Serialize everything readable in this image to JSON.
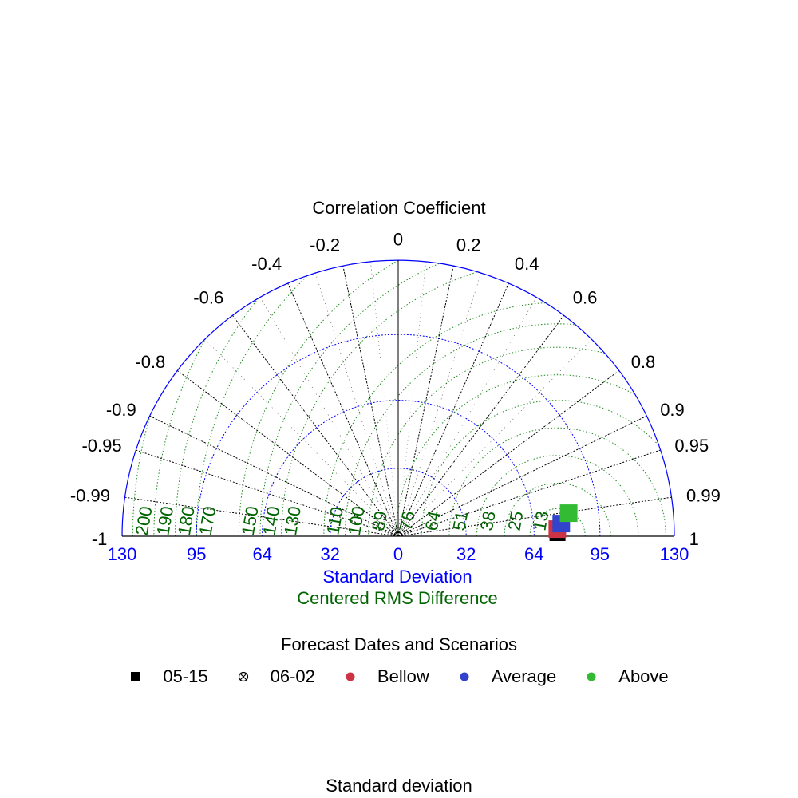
{
  "chart_data": {
    "type": "scatter",
    "subtype": "taylor-diagram",
    "title": "Correlation Coefficient",
    "xlabel": "Standard Deviation",
    "xlabel2": "Centered RMS Difference",
    "bottom_title": "Standard deviation",
    "reference_sd": 75,
    "sd_range": [
      -130,
      130
    ],
    "sd_tick_labels": [
      "130",
      "95",
      "64",
      "32",
      "0",
      "32",
      "64",
      "95",
      "130"
    ],
    "sd_arc_values": [
      32,
      64,
      95
    ],
    "correlation_ticks": [
      {
        "value": 0,
        "label": "0"
      },
      {
        "value": 0.2,
        "label": "0.2"
      },
      {
        "value": 0.4,
        "label": "0.4"
      },
      {
        "value": 0.6,
        "label": "0.6"
      },
      {
        "value": 0.8,
        "label": "0.8"
      },
      {
        "value": 0.9,
        "label": "0.9"
      },
      {
        "value": 0.95,
        "label": "0.95"
      },
      {
        "value": 0.99,
        "label": "0.99"
      },
      {
        "value": 1,
        "label": "1"
      },
      {
        "value": -0.2,
        "label": "-0.2"
      },
      {
        "value": -0.4,
        "label": "-0.4"
      },
      {
        "value": -0.6,
        "label": "-0.6"
      },
      {
        "value": -0.8,
        "label": "-0.8"
      },
      {
        "value": -0.9,
        "label": "-0.9"
      },
      {
        "value": -0.95,
        "label": "-0.95"
      },
      {
        "value": -0.99,
        "label": "-0.99"
      },
      {
        "value": -1,
        "label": "-1"
      }
    ],
    "rms_contours": [
      13,
      25,
      38,
      51,
      64,
      76,
      89,
      100,
      110,
      130,
      140,
      150,
      170,
      180,
      190,
      200
    ],
    "rms_labels": [
      "13",
      "25",
      "38",
      "51",
      "64",
      "76",
      "89",
      "100",
      "110",
      "130",
      "140",
      "150",
      "170",
      "180",
      "190",
      "200"
    ],
    "points": [
      {
        "date": "05-15",
        "scenario": "Bellow",
        "sd": 75,
        "corr": 0.999
      },
      {
        "date": "05-15",
        "scenario": "Average",
        "sd": 77,
        "corr": 0.997
      },
      {
        "date": "05-15",
        "scenario": "Above",
        "sd": 81,
        "corr": 0.991
      }
    ],
    "colors": {
      "axis_blue": "#0000ff",
      "rms_green": "#006400",
      "arc_green": "#228b22",
      "Bellow": "#cc3344",
      "Average": "#3344cc",
      "Above": "#33bb33",
      "obs": "#000000"
    },
    "legend": {
      "title": "Forecast Dates and Scenarios",
      "placement": "bottom",
      "items": [
        {
          "label": "05-15",
          "marker": "square",
          "color": "#000000"
        },
        {
          "label": "06-02",
          "marker": "crossed-circle",
          "color": "#000000"
        },
        {
          "label": "Bellow",
          "marker": "dot",
          "color": "#cc3344"
        },
        {
          "label": "Average",
          "marker": "dot",
          "color": "#3344cc"
        },
        {
          "label": "Above",
          "marker": "dot",
          "color": "#33bb33"
        }
      ]
    }
  }
}
